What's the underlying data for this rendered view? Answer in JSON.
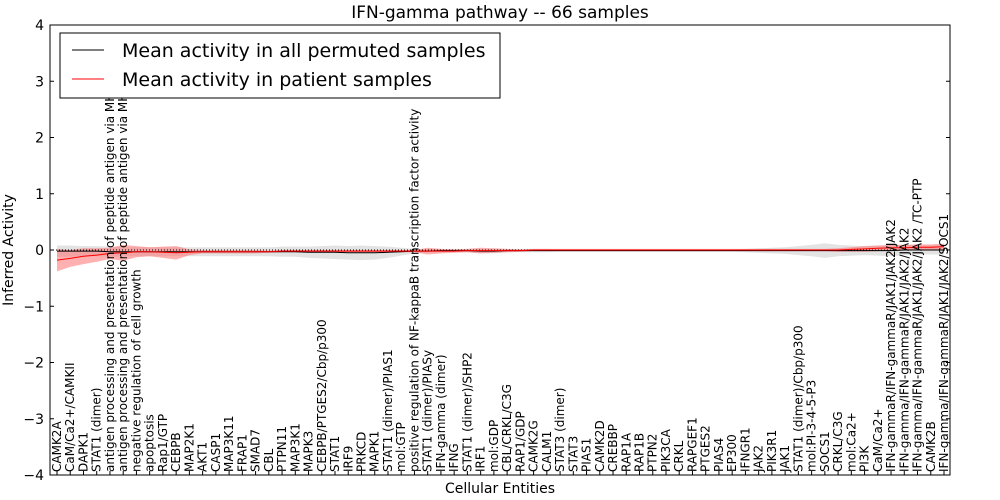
{
  "chart_data": {
    "type": "line",
    "title": "IFN-gamma pathway -- 66 samples",
    "xlabel": "Cellular Entities",
    "ylabel": "Inferred Activity",
    "ylim": [
      -4,
      4
    ],
    "yticks": [
      -4,
      -3,
      -2,
      -1,
      0,
      1,
      2,
      3,
      4
    ],
    "ytick_labels": [
      "−4",
      "−3",
      "−2",
      "−1",
      "0",
      "1",
      "2",
      "3",
      "4"
    ],
    "reference_line": 0,
    "legend_position": "top-left",
    "categories": [
      "CAMK2A",
      "CaM/Ca2+/CAMKII",
      "DAPK1",
      "STAT1 (dimer)",
      "antigen processing and presentation of peptide antigen via MHC class I",
      "antigen processing and presentation of peptide antigen via MHC class I",
      "negative regulation of cell growth",
      "apoptosis",
      "Rap1/GTP",
      "CEBPB",
      "MAP2K1",
      "AKT1",
      "CASP1",
      "MAP3K11",
      "FRAP1",
      "SMAD7",
      "CBL",
      "PTPN11",
      "MAP3K1",
      "MAPK3",
      "CEBPB/PTGES2/Cbp/p300",
      "STAT1",
      "IRF9",
      "PRKCD",
      "MAPK1",
      "STAT1 (dimer)/PIAS1",
      "mol:GTP",
      "positive regulation of NF-kappaB transcription factor activity",
      "STAT1 (dimer)/PIASy",
      "IFN-gamma (dimer)",
      "IFNG",
      "STAT1 (dimer)/SHP2",
      "IRF1",
      "mol:GDP",
      "CBL/CRKL/C3G",
      "RAP1/GDP",
      "CAMK2G",
      "CALM1",
      "STAT3 (dimer)",
      "STAT3",
      "PIAS1",
      "CAMK2D",
      "CREBBP",
      "RAP1A",
      "RAP1B",
      "PTPN2",
      "PIK3CA",
      "CRKL",
      "RAPGEF1",
      "PTGES2",
      "PIAS4",
      "EP300",
      "IFNGR1",
      "JAK2",
      "PIK3R1",
      "JAK1",
      "STAT1 (dimer)/Cbp/p300",
      "mol:PI-3-4-5-P3",
      "SOCS1",
      "CRKL/C3G",
      "mol:Ca2+",
      "PI3K",
      "CaM/Ca2+",
      "IFN-gammaR/IFN-gammaR/JAK1/JAK2/JAK2",
      "IFN-gamma/IFN-gammaR/JAK1/JAK2/JAK2",
      "IFN-gamma/IFN-gammaR/JAK1/JAK2/JAK2 /TC-PTP",
      "CAMK2B",
      "IFN-gamma/IFN-gammaR/JAK1/JAK2/SOCS1"
    ],
    "series": [
      {
        "name": "Mean activity in all permuted samples",
        "color": "#000000",
        "values": [
          -0.02,
          -0.02,
          -0.02,
          -0.02,
          -0.03,
          -0.03,
          -0.03,
          -0.03,
          -0.03,
          -0.03,
          -0.03,
          -0.03,
          -0.03,
          -0.03,
          -0.03,
          -0.03,
          -0.03,
          -0.03,
          -0.03,
          -0.04,
          -0.04,
          -0.04,
          -0.05,
          -0.05,
          -0.05,
          -0.04,
          -0.03,
          -0.02,
          -0.02,
          -0.01,
          -0.01,
          -0.01,
          -0.02,
          -0.02,
          -0.01,
          -0.01,
          -0.01,
          -0.01,
          -0.01,
          -0.01,
          -0.01,
          -0.01,
          -0.01,
          -0.01,
          -0.01,
          -0.01,
          -0.01,
          -0.01,
          -0.01,
          -0.01,
          -0.01,
          -0.01,
          -0.01,
          -0.01,
          -0.01,
          -0.01,
          -0.01,
          -0.01,
          -0.01,
          -0.01,
          -0.01,
          -0.01,
          -0.01,
          -0.01,
          0.0,
          0.0,
          0.0,
          0.0
        ],
        "band": [
          0.1,
          0.1,
          0.09,
          0.09,
          0.09,
          0.08,
          0.08,
          0.08,
          0.08,
          0.08,
          0.08,
          0.08,
          0.08,
          0.08,
          0.08,
          0.08,
          0.08,
          0.09,
          0.09,
          0.1,
          0.11,
          0.12,
          0.12,
          0.13,
          0.12,
          0.1,
          0.07,
          0.04,
          0.03,
          0.03,
          0.03,
          0.03,
          0.04,
          0.04,
          0.03,
          0.03,
          0.03,
          0.03,
          0.02,
          0.02,
          0.02,
          0.02,
          0.02,
          0.02,
          0.02,
          0.02,
          0.02,
          0.02,
          0.02,
          0.02,
          0.02,
          0.02,
          0.03,
          0.04,
          0.05,
          0.06,
          0.08,
          0.1,
          0.13,
          0.1,
          0.09,
          0.08,
          0.09,
          0.1,
          0.09,
          0.08,
          0.08,
          0.08
        ]
      },
      {
        "name": "Mean activity in patient samples",
        "color": "#ff0000",
        "values": [
          -0.18,
          -0.15,
          -0.11,
          -0.09,
          -0.06,
          -0.05,
          -0.03,
          -0.03,
          -0.04,
          -0.05,
          -0.04,
          -0.03,
          -0.03,
          -0.03,
          -0.03,
          -0.03,
          -0.03,
          -0.02,
          -0.02,
          -0.02,
          -0.02,
          -0.02,
          -0.02,
          -0.02,
          -0.02,
          -0.02,
          -0.02,
          -0.02,
          -0.02,
          -0.02,
          -0.02,
          -0.01,
          -0.01,
          -0.01,
          -0.01,
          -0.01,
          0.0,
          0.0,
          0.0,
          0.0,
          0.0,
          0.0,
          0.0,
          0.0,
          0.0,
          0.0,
          0.0,
          0.0,
          0.0,
          0.0,
          0.0,
          0.0,
          0.0,
          0.0,
          0.0,
          0.0,
          0.0,
          0.0,
          0.0,
          0.0,
          0.01,
          0.02,
          0.03,
          0.04,
          0.04,
          0.05,
          0.05,
          0.06
        ],
        "band": [
          0.2,
          0.15,
          0.14,
          0.12,
          0.1,
          0.14,
          0.1,
          0.08,
          0.1,
          0.12,
          0.05,
          0.03,
          0.03,
          0.03,
          0.03,
          0.03,
          0.02,
          0.02,
          0.02,
          0.02,
          0.02,
          0.02,
          0.02,
          0.02,
          0.02,
          0.02,
          0.02,
          0.02,
          0.06,
          0.04,
          0.03,
          0.03,
          0.05,
          0.04,
          0.03,
          0.02,
          0.02,
          0.02,
          0.02,
          0.02,
          0.02,
          0.02,
          0.02,
          0.02,
          0.02,
          0.02,
          0.02,
          0.02,
          0.02,
          0.02,
          0.02,
          0.02,
          0.02,
          0.02,
          0.02,
          0.02,
          0.02,
          0.02,
          0.02,
          0.03,
          0.04,
          0.05,
          0.05,
          0.05,
          0.05,
          0.05,
          0.05,
          0.05
        ]
      }
    ]
  }
}
